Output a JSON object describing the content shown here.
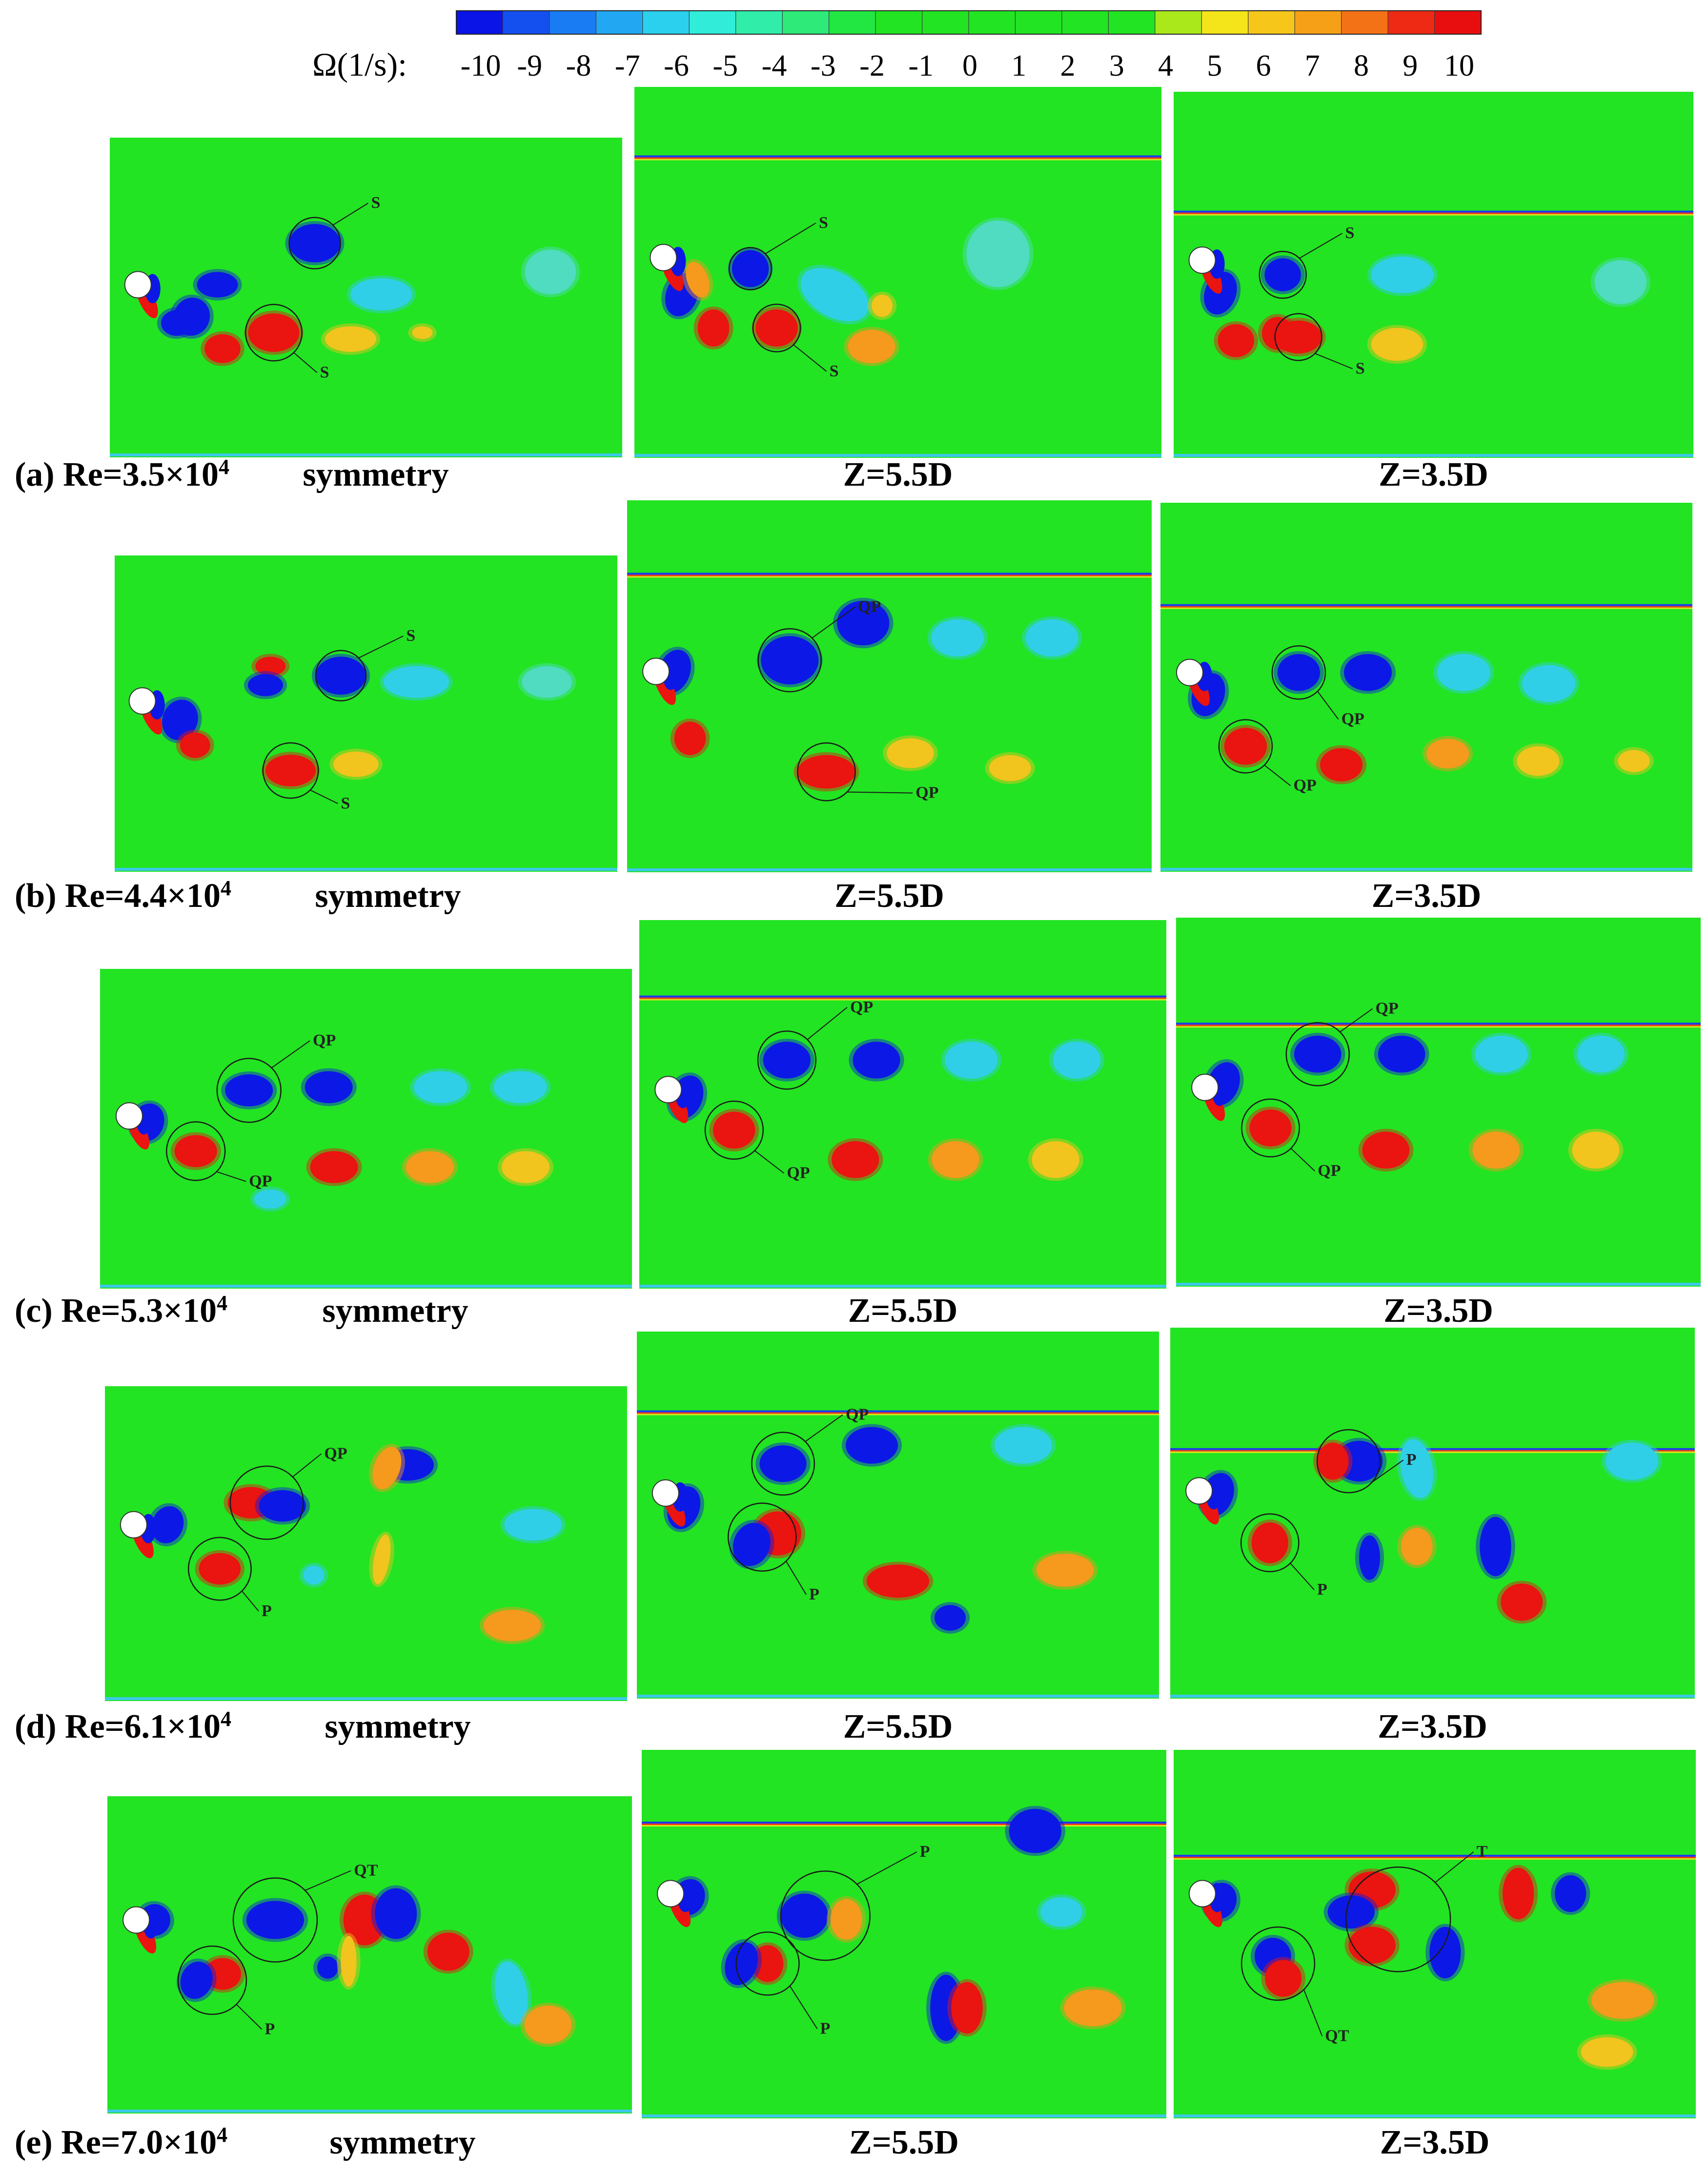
{
  "colorbar": {
    "title": "Ω(1/s):",
    "ticks": [
      "-10",
      "-9",
      "-8",
      "-7",
      "-6",
      "-5",
      "-4",
      "-3",
      "-2",
      "-1",
      "0",
      "1",
      "2",
      "3",
      "4",
      "5",
      "6",
      "7",
      "8",
      "9",
      "10"
    ],
    "colors": [
      "#0a14e6",
      "#1450f0",
      "#1a7cf2",
      "#22a8f2",
      "#2ad0ee",
      "#30ecd8",
      "#30eeaa",
      "#2eea78",
      "#22e642",
      "#22e422",
      "#22e422",
      "#22e422",
      "#22e422",
      "#22e422",
      "#22e422",
      "#aae81c",
      "#f4e41a",
      "#f6c61a",
      "#f6a018",
      "#f47216",
      "#ee2a14",
      "#e80e10"
    ],
    "field_color": "#22e422"
  },
  "rows": [
    {
      "label": "(a)  Re=3.5×10",
      "exp": "4",
      "panels": [
        {
          "label": "symmetry",
          "vortex_labels": [
            "S",
            "S"
          ]
        },
        {
          "label": "Z=5.5D",
          "vortex_labels": [
            "S",
            "S"
          ]
        },
        {
          "label": "Z=3.5D",
          "vortex_labels": [
            "S",
            "S"
          ]
        }
      ]
    },
    {
      "label": "(b)  Re=4.4×10",
      "exp": "4",
      "panels": [
        {
          "label": "symmetry",
          "vortex_labels": [
            "S",
            "S"
          ]
        },
        {
          "label": "Z=5.5D",
          "vortex_labels": [
            "QP",
            "QP"
          ]
        },
        {
          "label": "Z=3.5D",
          "vortex_labels": [
            "QP",
            "QP"
          ]
        }
      ]
    },
    {
      "label": "(c)  Re=5.3×10",
      "exp": "4",
      "panels": [
        {
          "label": "symmetry",
          "vortex_labels": [
            "QP",
            "QP"
          ]
        },
        {
          "label": "Z=5.5D",
          "vortex_labels": [
            "QP",
            "QP"
          ]
        },
        {
          "label": "Z=3.5D",
          "vortex_labels": [
            "QP",
            "QP"
          ]
        }
      ]
    },
    {
      "label": "(d)  Re=6.1×10",
      "exp": "4",
      "panels": [
        {
          "label": "symmetry",
          "vortex_labels": [
            "QP",
            "P"
          ]
        },
        {
          "label": "Z=5.5D",
          "vortex_labels": [
            "QP",
            "P"
          ]
        },
        {
          "label": "Z=3.5D",
          "vortex_labels": [
            "P",
            "P"
          ]
        }
      ]
    },
    {
      "label": "(e)  Re=7.0×10",
      "exp": "4",
      "panels": [
        {
          "label": "symmetry",
          "vortex_labels": [
            "QT",
            "P"
          ]
        },
        {
          "label": "Z=5.5D",
          "vortex_labels": [
            "P",
            "P"
          ]
        },
        {
          "label": "Z=3.5D",
          "vortex_labels": [
            "T",
            "QT"
          ]
        }
      ]
    }
  ]
}
